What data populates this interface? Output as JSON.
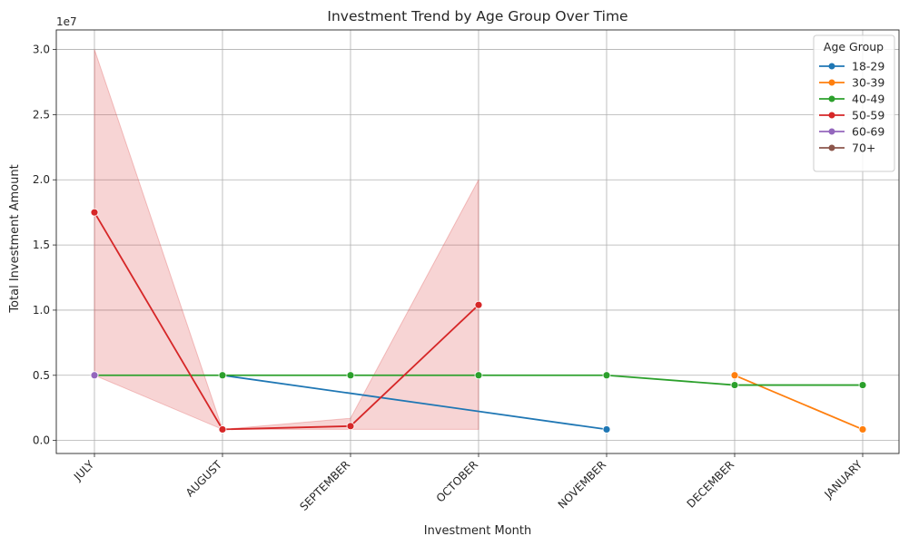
{
  "chart_data": {
    "type": "line",
    "title": "Investment Trend by Age Group Over Time",
    "xlabel": "Investment Month",
    "ylabel": "Total Investment Amount",
    "y_offset_label": "1e7",
    "categories": [
      "JULY",
      "AUGUST",
      "SEPTEMBER",
      "OCTOBER",
      "NOVEMBER",
      "DECEMBER",
      "JANUARY"
    ],
    "y_ticks": [
      0,
      5000000,
      10000000,
      15000000,
      20000000,
      25000000,
      30000000
    ],
    "y_tick_labels": [
      "0.0",
      "0.5",
      "1.0",
      "1.5",
      "2.0",
      "2.5",
      "3.0"
    ],
    "ylim": [
      -1000000,
      31500000
    ],
    "grid": true,
    "legend_title": "Age Group",
    "legend_placement": "top-right",
    "series": [
      {
        "name": "18-29",
        "color": "#1f77b4",
        "points": [
          [
            "AUGUST",
            5000000
          ],
          [
            "NOVEMBER",
            850000
          ]
        ]
      },
      {
        "name": "30-39",
        "color": "#ff7f0e",
        "points": [
          [
            "DECEMBER",
            5000000
          ],
          [
            "JANUARY",
            850000
          ]
        ]
      },
      {
        "name": "40-49",
        "color": "#2ca02c",
        "points": [
          [
            "JULY",
            5000000
          ],
          [
            "AUGUST",
            5000000
          ],
          [
            "SEPTEMBER",
            5000000
          ],
          [
            "OCTOBER",
            5000000
          ],
          [
            "NOVEMBER",
            5000000
          ],
          [
            "DECEMBER",
            4250000
          ],
          [
            "JANUARY",
            4250000
          ]
        ]
      },
      {
        "name": "50-59",
        "color": "#d62728",
        "points": [
          [
            "JULY",
            17500000
          ],
          [
            "AUGUST",
            850000
          ],
          [
            "SEPTEMBER",
            1100000
          ],
          [
            "OCTOBER",
            10400000
          ]
        ],
        "ci": [
          [
            "JULY",
            5000000,
            30000000
          ],
          [
            "AUGUST",
            850000,
            850000
          ],
          [
            "SEPTEMBER",
            850000,
            1700000
          ],
          [
            "OCTOBER",
            850000,
            20000000
          ]
        ]
      },
      {
        "name": "60-69",
        "color": "#9467bd",
        "points": [
          [
            "JULY",
            5000000
          ]
        ]
      },
      {
        "name": "70+",
        "color": "#8c564b",
        "points": []
      }
    ]
  }
}
